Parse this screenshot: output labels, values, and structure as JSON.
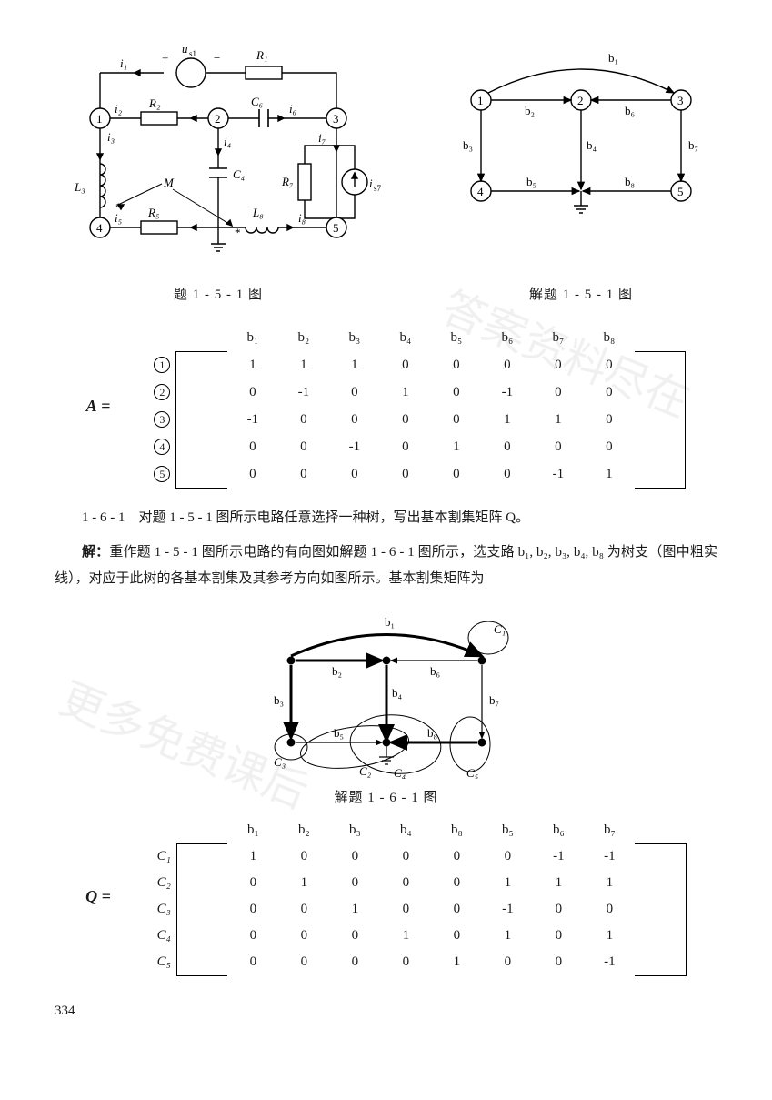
{
  "page_number": "334",
  "figures": {
    "circuit": {
      "caption": "题 1 - 5 - 1 图",
      "nodes": [
        "①",
        "②",
        "③",
        "④",
        "⑤"
      ],
      "branch_labels": [
        "i₁",
        "i₂",
        "i₃",
        "i₄",
        "i₅",
        "i₆",
        "i₇",
        "i₈"
      ],
      "component_labels": [
        "u_{s1}",
        "R₁",
        "R₂",
        "C₆",
        "C₄",
        "L₃",
        "R₅",
        "L₈",
        "R₇",
        "i_{s7}",
        "M"
      ]
    },
    "digraph": {
      "caption": "解题 1 - 5 - 1 图",
      "nodes": [
        "①",
        "②",
        "③",
        "④",
        "⑤"
      ],
      "edges": [
        "b₁",
        "b₂",
        "b₃",
        "b₄",
        "b₅",
        "b₆",
        "b₇",
        "b₈"
      ]
    },
    "cutset": {
      "caption": "解题 1 - 6 - 1 图",
      "tree_branches": [
        "b₁",
        "b₂",
        "b₃",
        "b₄",
        "b₈"
      ],
      "cotree_branches": [
        "b₅",
        "b₆",
        "b₇"
      ],
      "cuts": [
        "C₁",
        "C₂",
        "C₃",
        "C₄",
        "C₅"
      ]
    }
  },
  "matrix_A": {
    "name": "A",
    "col_headers": [
      "b₁",
      "b₂",
      "b₃",
      "b₄",
      "b₅",
      "b₆",
      "b₇",
      "b₈"
    ],
    "row_headers": [
      "①",
      "②",
      "③",
      "④",
      "⑤"
    ],
    "rows": [
      [
        "1",
        "1",
        "1",
        "0",
        "0",
        "0",
        "0",
        "0"
      ],
      [
        "0",
        "-1",
        "0",
        "1",
        "0",
        "-1",
        "0",
        "0"
      ],
      [
        "-1",
        "0",
        "0",
        "0",
        "0",
        "1",
        "1",
        "0"
      ],
      [
        "0",
        "0",
        "-1",
        "0",
        "1",
        "0",
        "0",
        "0"
      ],
      [
        "0",
        "0",
        "0",
        "0",
        "0",
        "0",
        "-1",
        "1"
      ]
    ]
  },
  "text": {
    "problem": "1 - 6 - 1　对题 1 - 5 - 1 图所示电路任意选择一种树，写出基本割集矩阵 Q。",
    "solution_lead": "解：",
    "solution_body": "重作题 1 - 5 - 1 图所示电路的有向图如解题 1 - 6 - 1 图所示，选支路 b₁, b₂, b₃, b₄, b₈ 为树支（图中粗实线），对应于此树的各基本割集及其参考方向如图所示。基本割集矩阵为"
  },
  "matrix_Q": {
    "name": "Q",
    "col_headers": [
      "b₁",
      "b₂",
      "b₃",
      "b₄",
      "b₈",
      "b₅",
      "b₆",
      "b₇"
    ],
    "row_headers": [
      "C₁",
      "C₂",
      "C₃",
      "C₄",
      "C₅"
    ],
    "rows": [
      [
        "1",
        "0",
        "0",
        "0",
        "0",
        "0",
        "-1",
        "-1"
      ],
      [
        "0",
        "1",
        "0",
        "0",
        "0",
        "1",
        "1",
        "1"
      ],
      [
        "0",
        "0",
        "1",
        "0",
        "0",
        "-1",
        "0",
        "0"
      ],
      [
        "0",
        "0",
        "0",
        "1",
        "0",
        "1",
        "0",
        "1"
      ],
      [
        "0",
        "0",
        "0",
        "0",
        "1",
        "0",
        "0",
        "-1"
      ]
    ]
  },
  "style": {
    "text_color": "#1a1a1a",
    "background": "#ffffff",
    "font_family": "SimSun / Songti serif",
    "body_fontsize_pt": 11,
    "line_stroke": "#000000",
    "thick_stroke_width": 3,
    "thin_stroke_width": 1.2
  }
}
